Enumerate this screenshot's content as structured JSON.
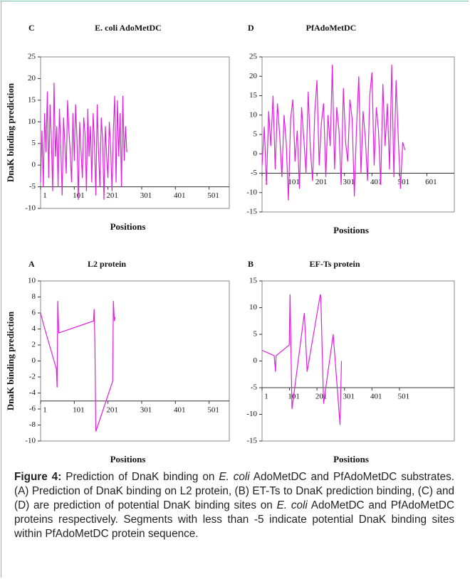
{
  "chart_data": [
    {
      "type": "line",
      "panel": "C",
      "title": "E. coli AdoMetDC",
      "ylabel": "DnaK binding prediction",
      "xlabel": "Positions",
      "color": "#e020e0",
      "xaxis_at": -5,
      "xlim": [
        1,
        561
      ],
      "xticks": [
        1,
        101,
        201,
        301,
        401,
        501
      ],
      "ylim": [
        -10,
        25
      ],
      "yticks": [
        -10,
        -5,
        0,
        5,
        10,
        15,
        20,
        25
      ],
      "x": [
        1,
        5,
        9,
        13,
        17,
        21,
        25,
        29,
        33,
        37,
        41,
        45,
        49,
        53,
        57,
        61,
        65,
        69,
        73,
        77,
        81,
        85,
        89,
        93,
        97,
        101,
        105,
        109,
        113,
        117,
        121,
        125,
        129,
        133,
        137,
        141,
        145,
        149,
        153,
        157,
        161,
        165,
        169,
        173,
        177,
        181,
        185,
        189,
        193,
        197,
        201,
        205,
        209,
        213,
        217,
        221,
        225,
        229,
        233,
        237,
        241,
        245,
        249,
        253,
        257
      ],
      "values": [
        -4,
        8,
        -5,
        12,
        3,
        17,
        -3,
        14,
        6,
        -6,
        19,
        2,
        9,
        -5,
        13,
        4,
        -7,
        11,
        5,
        -2,
        15,
        8,
        3,
        -4,
        12,
        1,
        14,
        6,
        -8,
        10,
        3,
        -3,
        11,
        7,
        -6,
        13,
        2,
        9,
        -4,
        12,
        5,
        -7,
        14,
        3,
        -5,
        11,
        6,
        -8,
        9,
        2,
        -3,
        10,
        4,
        -6,
        8,
        16,
        -4,
        15,
        2,
        12,
        -5,
        16,
        1,
        9,
        3
      ]
    },
    {
      "type": "line",
      "panel": "D",
      "title": "PfAdoMetDC",
      "xlabel": "Positions",
      "color": "#e020e0",
      "xaxis_at": -5,
      "xlim": [
        1,
        701
      ],
      "xticks": [
        1,
        101,
        201,
        301,
        401,
        501,
        601
      ],
      "ylim": [
        -15,
        25
      ],
      "yticks": [
        -15,
        -10,
        -5,
        0,
        5,
        10,
        15,
        20,
        25
      ],
      "x": [
        1,
        9,
        17,
        25,
        33,
        41,
        49,
        57,
        65,
        73,
        81,
        89,
        97,
        105,
        113,
        121,
        129,
        137,
        145,
        153,
        161,
        169,
        177,
        185,
        193,
        201,
        209,
        217,
        225,
        233,
        241,
        249,
        257,
        265,
        273,
        281,
        289,
        297,
        305,
        313,
        321,
        329,
        337,
        345,
        353,
        361,
        369,
        377,
        385,
        393,
        401,
        409,
        417,
        425,
        433,
        441,
        449,
        457,
        465,
        473,
        481,
        489,
        497,
        505,
        513,
        521
      ],
      "values": [
        -3,
        7,
        -8,
        11,
        2,
        15,
        -4,
        13,
        5,
        -6,
        10,
        3,
        -12,
        9,
        14,
        -2,
        6,
        -9,
        12,
        4,
        -5,
        16,
        1,
        -7,
        11,
        19,
        -3,
        8,
        13,
        -6,
        10,
        2,
        23,
        -4,
        12,
        6,
        -8,
        17,
        3,
        -2,
        14,
        9,
        -11,
        7,
        20,
        -5,
        11,
        4,
        -7,
        15,
        21,
        -3,
        12,
        6,
        -8,
        18,
        2,
        13,
        -4,
        23,
        -6,
        19,
        4,
        -9,
        3,
        1
      ]
    },
    {
      "type": "line",
      "panel": "A",
      "title": "L2 protein",
      "ylabel": "DnaK binding prediction",
      "xlabel": "Positions",
      "color": "#e020e0",
      "xaxis_at": -5,
      "xlim": [
        1,
        561
      ],
      "xticks": [
        1,
        101,
        201,
        301,
        401,
        501
      ],
      "ylim": [
        -10,
        10
      ],
      "yticks": [
        -10,
        -8,
        -6,
        -4,
        -2,
        0,
        2,
        4,
        6,
        8,
        10
      ],
      "x": [
        1,
        10,
        48,
        50,
        52,
        55,
        158,
        160,
        162,
        165,
        215,
        217,
        220,
        222
      ],
      "values": [
        6,
        4.5,
        -1,
        -3.3,
        7.5,
        3.5,
        5,
        6.5,
        2.5,
        -8.8,
        -2.5,
        7.5,
        5,
        5.5
      ]
    },
    {
      "type": "line",
      "panel": "B",
      "title": "EF-Ts protein",
      "xlabel": "Positions",
      "color": "#e020e0",
      "xaxis_at": -5,
      "xlim": [
        1,
        701
      ],
      "xticks": [
        1,
        101,
        201,
        301,
        401,
        501
      ],
      "ylim": [
        -15,
        15
      ],
      "yticks": [
        -15,
        -10,
        -5,
        0,
        5,
        10,
        15
      ],
      "x": [
        1,
        45,
        50,
        52,
        100,
        103,
        110,
        155,
        165,
        213,
        215,
        225,
        260,
        285,
        290
      ],
      "values": [
        2,
        1,
        -2,
        1,
        3,
        12.5,
        -9,
        9,
        -2,
        12.5,
        12,
        -8,
        5,
        -12,
        0
      ]
    }
  ],
  "caption": {
    "label": "Figure 4:",
    "segments": [
      " Prediction of DnaK binding on ",
      "E. coli",
      " AdoMetDC and PfAdoMetDC substrates. (A) Prediction of DnaK binding on L2 protein, (B) ET-Ts to DnaK prediction binding, (C) and (D) are prediction of potential DnaK binding sites on ",
      "E. coli",
      " AdoMetDC and PfAdoMetDC proteins respectively. Segments with less than -5 indicate potential DnaK binding sites within PfAdoMetDC protein sequence."
    ]
  }
}
